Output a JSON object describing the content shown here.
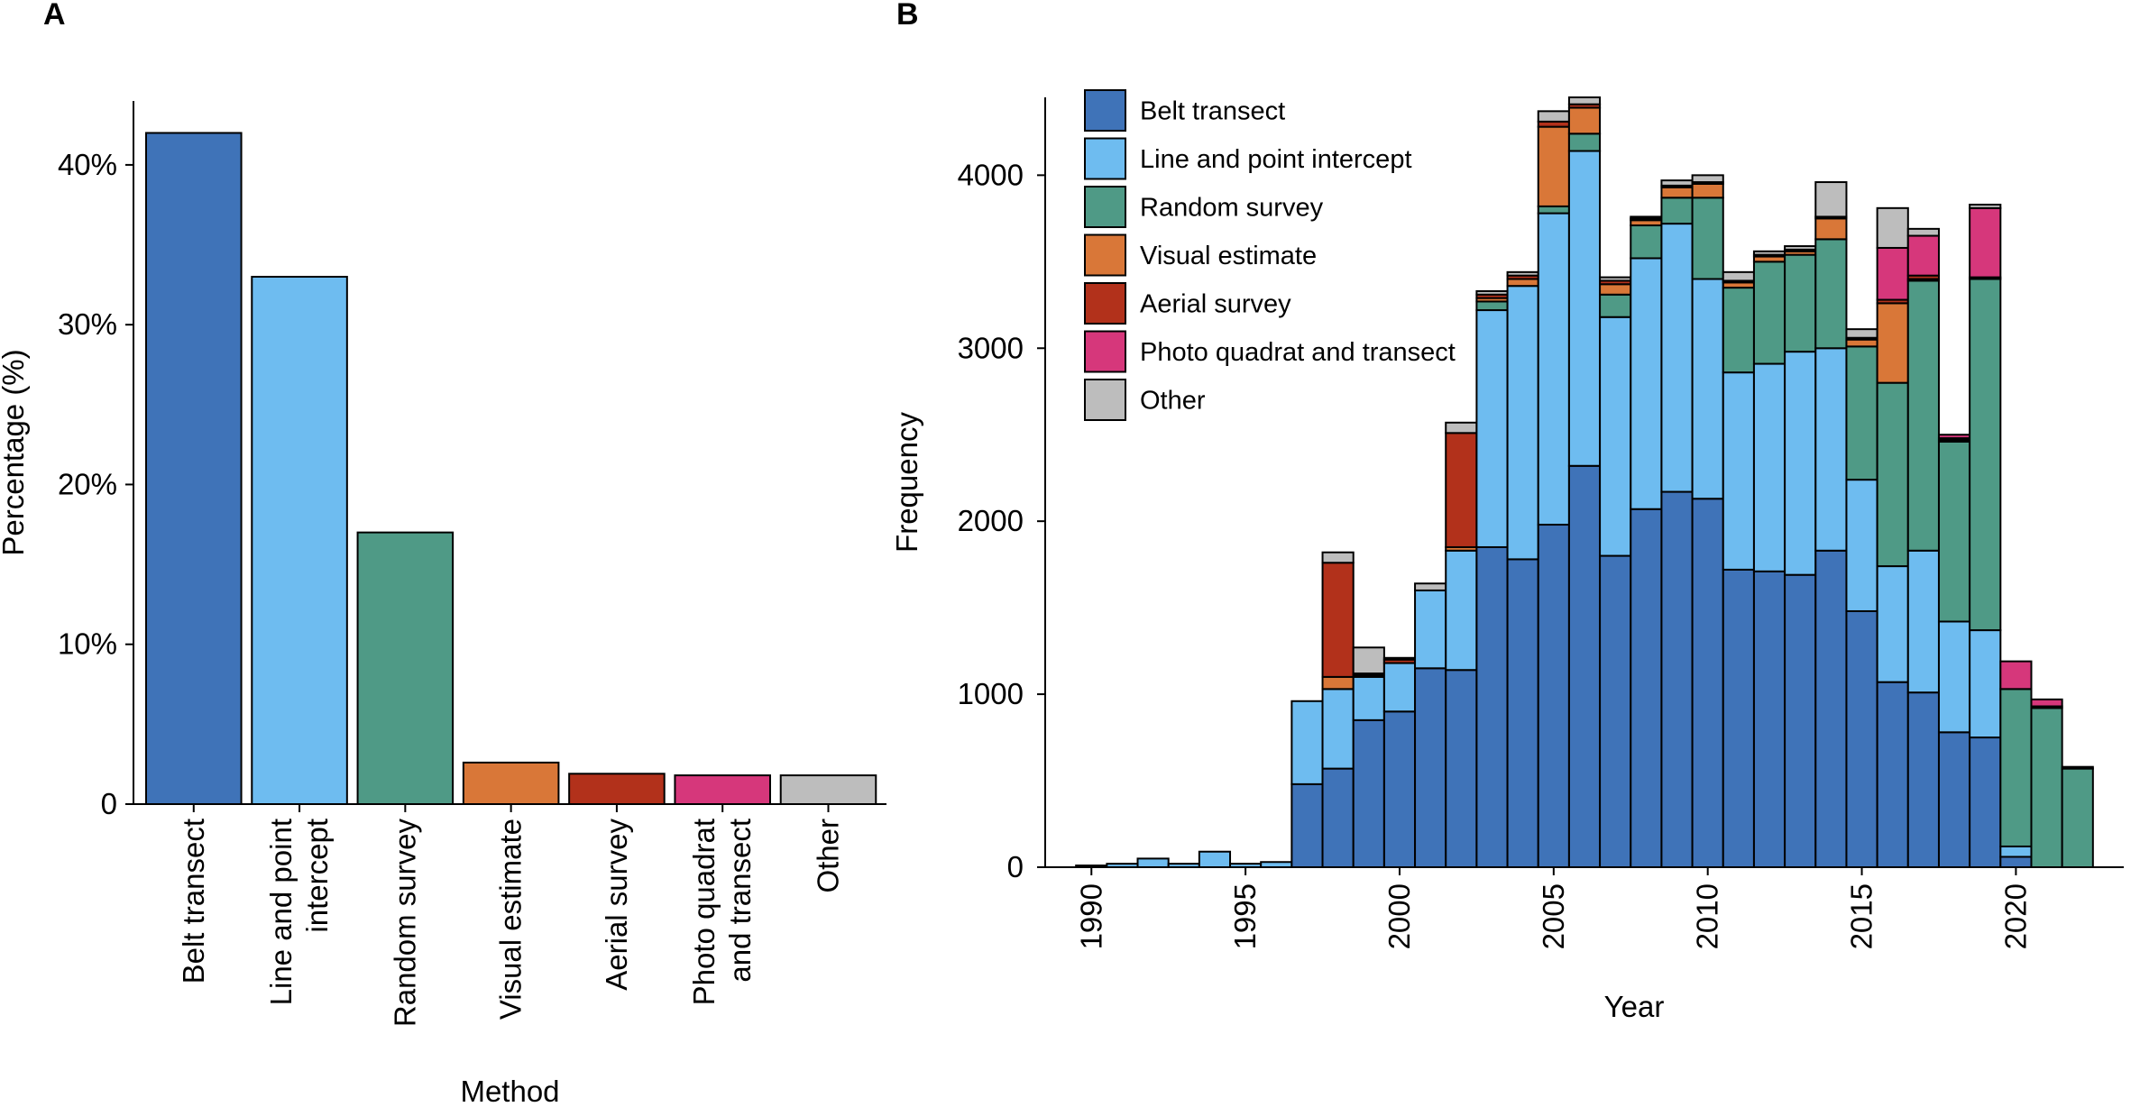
{
  "panels": {
    "a": {
      "letter": "A"
    },
    "b": {
      "letter": "B"
    }
  },
  "colors": {
    "belt": "#3f73b8",
    "line": "#6ebcf0",
    "random": "#4f9a86",
    "visual": "#d97738",
    "aerial": "#b2311b",
    "photo": "#d6377b",
    "other": "#bdbdbd"
  },
  "chart_data": [
    {
      "type": "bar",
      "panel": "A",
      "title": "",
      "xlabel": "Method",
      "ylabel": "Percentage (%)",
      "ylim": [
        0,
        44
      ],
      "yticks": [
        0,
        10,
        20,
        30,
        40
      ],
      "ytick_labels": [
        "0",
        "10%",
        "20%",
        "30%",
        "40%"
      ],
      "categories": [
        "Belt transect",
        "Line and point intercept",
        "Random survey",
        "Visual estimate",
        "Aerial survey",
        "Photo quadrat and transect",
        "Other"
      ],
      "category_lines": [
        [
          "Belt transect"
        ],
        [
          "Line and point",
          "intercept"
        ],
        [
          "Random survey"
        ],
        [
          "Visual estimate"
        ],
        [
          "Aerial survey"
        ],
        [
          "Photo quadrat",
          "and transect"
        ],
        [
          "Other"
        ]
      ],
      "color_keys": [
        "belt",
        "line",
        "random",
        "visual",
        "aerial",
        "photo",
        "other"
      ],
      "values": [
        42,
        33,
        17,
        2.6,
        1.9,
        1.8,
        1.8
      ]
    },
    {
      "type": "bar",
      "stacked": true,
      "panel": "B",
      "title": "",
      "xlabel": "Year",
      "ylabel": "Frequency",
      "ylim": [
        0,
        4450
      ],
      "xlim": [
        1988.5,
        2023.5
      ],
      "yticks": [
        0,
        1000,
        2000,
        3000,
        4000
      ],
      "ytick_labels": [
        "0",
        "1000",
        "2000",
        "3000",
        "4000"
      ],
      "xticks": [
        1990,
        1995,
        2000,
        2005,
        2010,
        2015,
        2020
      ],
      "xtick_labels": [
        "1990",
        "1995",
        "2000",
        "2005",
        "2010",
        "2015",
        "2020"
      ],
      "legend_position": "top-left",
      "x": [
        1990,
        1991,
        1992,
        1993,
        1994,
        1995,
        1996,
        1997,
        1998,
        1999,
        2000,
        2001,
        2002,
        2003,
        2004,
        2005,
        2006,
        2007,
        2008,
        2009,
        2010,
        2011,
        2012,
        2013,
        2014,
        2015,
        2016,
        2017,
        2018,
        2019,
        2020,
        2021,
        2022
      ],
      "series": [
        {
          "name": "Belt transect",
          "color_key": "belt",
          "values": [
            0,
            0,
            0,
            0,
            0,
            0,
            0,
            480,
            570,
            850,
            900,
            1150,
            1140,
            1850,
            1780,
            1980,
            2320,
            1800,
            2070,
            2170,
            2130,
            1720,
            1710,
            1690,
            1830,
            1480,
            1070,
            1010,
            780,
            750,
            60,
            0,
            0
          ]
        },
        {
          "name": "Line and point intercept",
          "color_key": "line",
          "values": [
            10,
            20,
            50,
            20,
            90,
            20,
            30,
            480,
            460,
            250,
            280,
            450,
            690,
            1370,
            1580,
            1800,
            1820,
            1380,
            1450,
            1550,
            1270,
            1140,
            1200,
            1290,
            1170,
            760,
            670,
            820,
            640,
            620,
            60,
            0,
            0
          ]
        },
        {
          "name": "Random survey",
          "color_key": "random",
          "values": [
            0,
            0,
            0,
            0,
            0,
            0,
            0,
            0,
            0,
            0,
            0,
            0,
            0,
            50,
            0,
            40,
            100,
            130,
            190,
            150,
            470,
            490,
            590,
            560,
            630,
            770,
            1060,
            1560,
            1040,
            2030,
            910,
            920,
            570
          ]
        },
        {
          "name": "Visual estimate",
          "color_key": "visual",
          "values": [
            0,
            0,
            0,
            0,
            0,
            0,
            0,
            0,
            70,
            10,
            0,
            0,
            20,
            20,
            40,
            460,
            150,
            60,
            30,
            60,
            80,
            30,
            30,
            20,
            120,
            40,
            460,
            10,
            10,
            0,
            0,
            0,
            0
          ]
        },
        {
          "name": "Aerial survey",
          "color_key": "aerial",
          "values": [
            0,
            0,
            0,
            0,
            0,
            0,
            0,
            0,
            660,
            10,
            20,
            0,
            660,
            20,
            20,
            30,
            20,
            20,
            10,
            10,
            10,
            10,
            10,
            10,
            10,
            10,
            20,
            20,
            10,
            10,
            0,
            10,
            10
          ]
        },
        {
          "name": "Photo quadrat and transect",
          "color_key": "photo",
          "values": [
            0,
            0,
            0,
            0,
            0,
            0,
            0,
            0,
            0,
            0,
            0,
            0,
            0,
            0,
            0,
            0,
            0,
            0,
            0,
            0,
            0,
            0,
            0,
            0,
            0,
            0,
            300,
            230,
            20,
            400,
            160,
            40,
            0
          ]
        },
        {
          "name": "Other",
          "color_key": "other",
          "values": [
            0,
            0,
            0,
            0,
            0,
            0,
            0,
            0,
            60,
            150,
            10,
            40,
            60,
            20,
            20,
            60,
            40,
            20,
            10,
            30,
            40,
            50,
            20,
            20,
            200,
            50,
            230,
            40,
            0,
            20,
            0,
            0,
            0
          ]
        }
      ]
    }
  ]
}
